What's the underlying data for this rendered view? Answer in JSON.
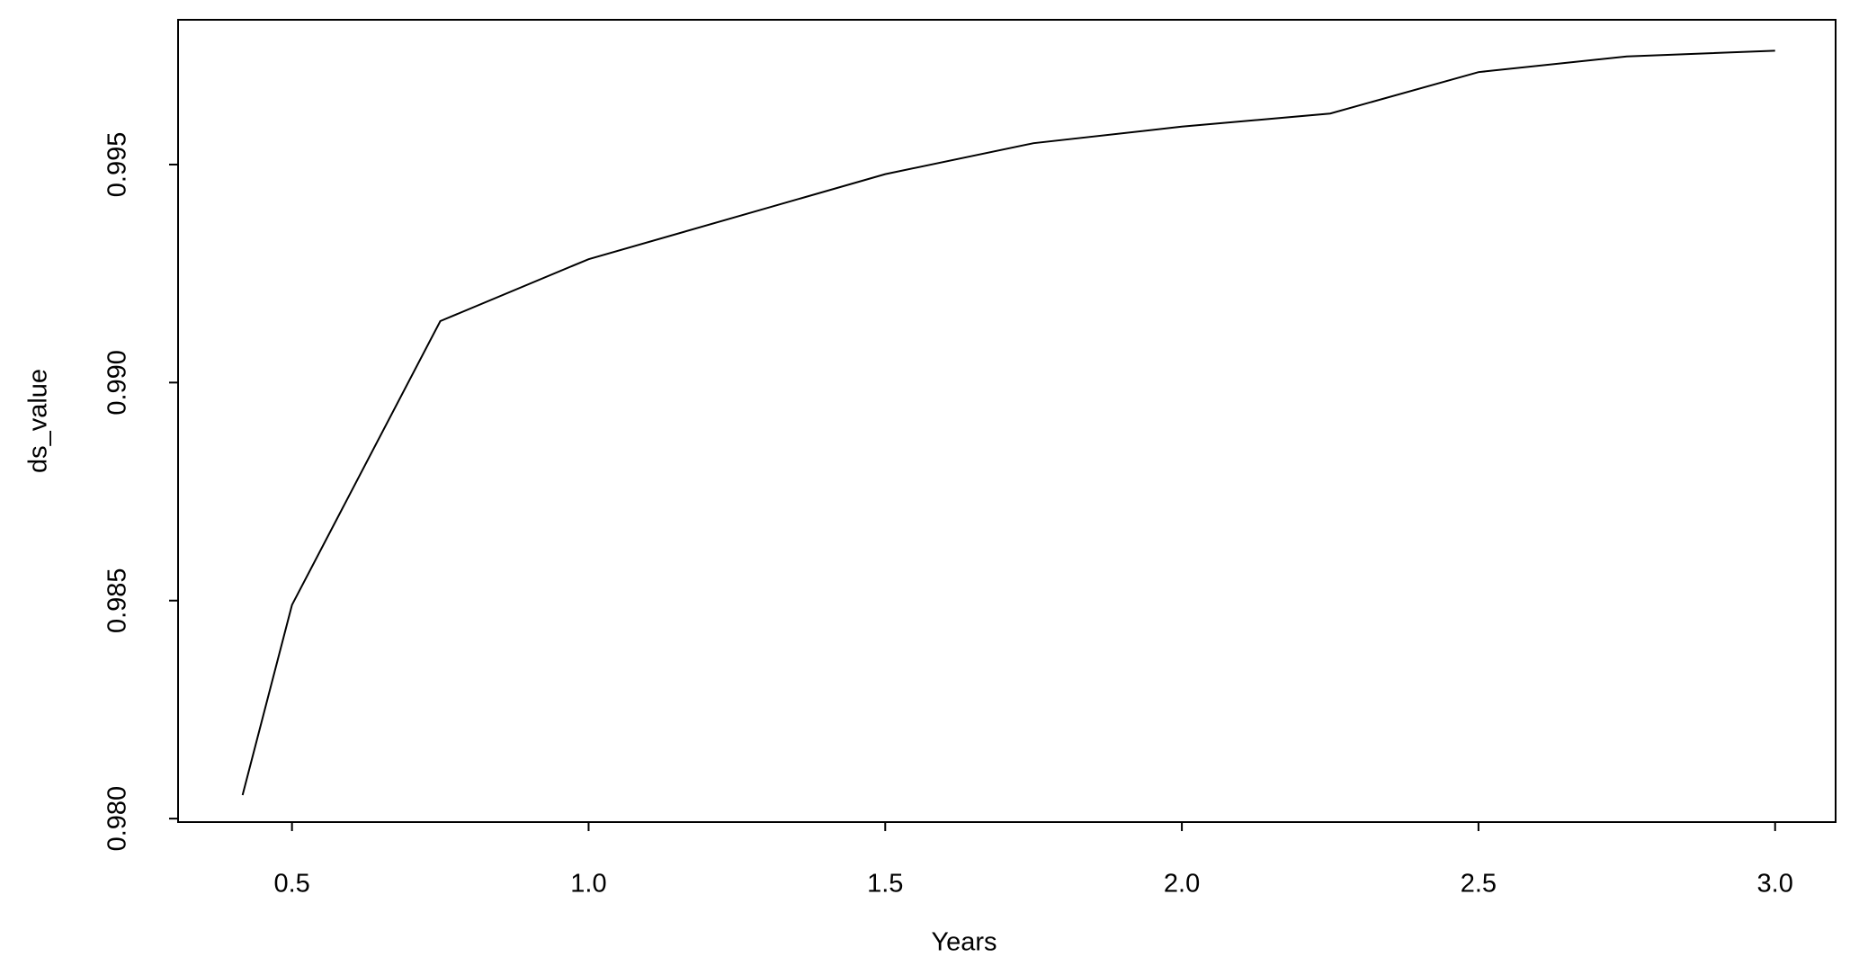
{
  "chart_data": {
    "type": "line",
    "x_label": "Years",
    "y_label": "ds_value",
    "x": [
      0.4167,
      0.5,
      0.75,
      1.0,
      1.5,
      1.75,
      2.0,
      2.25,
      2.5,
      2.75,
      3.0
    ],
    "series": [
      {
        "name": "ds_value",
        "color": "#000000",
        "values": [
          0.98054,
          0.9849,
          0.99141,
          0.99283,
          0.99478,
          0.99549,
          0.99587,
          0.99617,
          0.99712,
          0.99748,
          0.99761
        ]
      }
    ],
    "xlim": [
      0.308,
      3.102
    ],
    "ylim": [
      0.97992,
      0.99832
    ],
    "xticks": [
      0.5,
      {
        "value": 1.0,
        "label": "1.0"
      },
      1.5,
      {
        "value": 2.0,
        "label": "2.0"
      },
      2.5,
      {
        "value": 3.0,
        "label": "3.0"
      }
    ],
    "yticks": [
      {
        "value": 0.98,
        "label": "0.980"
      },
      {
        "value": 0.985,
        "label": "0.985"
      },
      {
        "value": 0.99,
        "label": "0.990"
      },
      {
        "value": 0.995,
        "label": "0.995"
      }
    ]
  }
}
